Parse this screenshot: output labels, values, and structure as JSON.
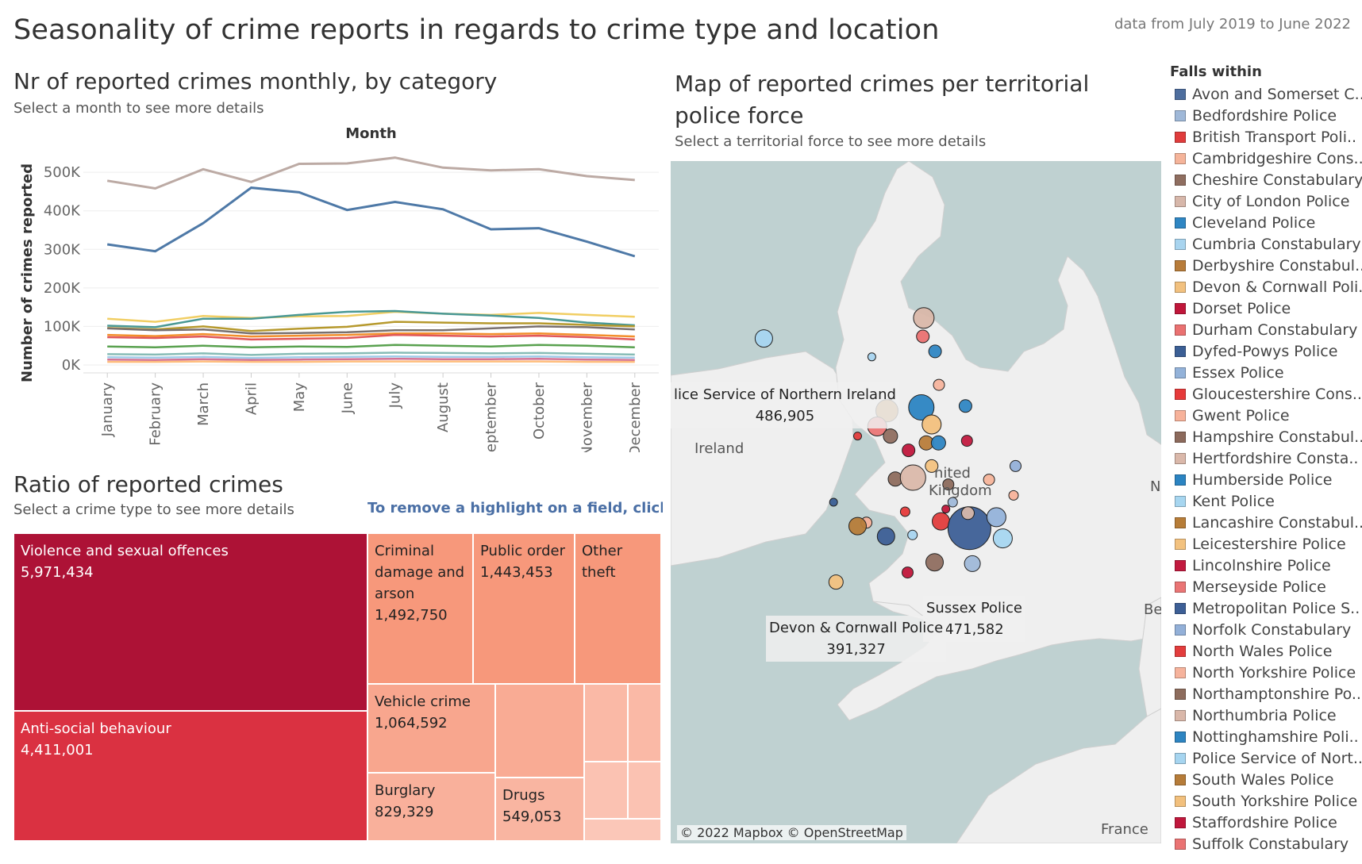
{
  "header": {
    "title": "Seasonality of crime reports in regards to crime type and location",
    "date_range": "data from July 2019 to June 2022"
  },
  "line_section": {
    "title": "Nr of reported crimes monthly, by category",
    "subtitle": "Select a month to see more details"
  },
  "map_section": {
    "title": "Map of reported crimes per territorial police force",
    "subtitle": "Select a territorial force to see more details",
    "credit": "© 2022 Mapbox © OpenStreetMap",
    "geo_labels": [
      "Ireland",
      "nited",
      "Kingdom",
      "France",
      "N",
      "Be"
    ],
    "callouts": [
      {
        "name": "lice Service of Northern Ireland",
        "value": "486,905"
      },
      {
        "name": "Sussex Police",
        "value": "471,582"
      },
      {
        "name": "Devon & Cornwall Police",
        "value": "391,327"
      }
    ]
  },
  "treemap_section": {
    "title": "Ratio of reported crimes",
    "subtitle": "Select a crime type to see more details",
    "hint": "To remove a highlight on a field, click esc"
  },
  "chart_data": [
    {
      "type": "line",
      "title": "Month",
      "xlabel": "",
      "ylabel": "Number of crimes reported",
      "categories": [
        "January",
        "February",
        "March",
        "April",
        "May",
        "June",
        "July",
        "August",
        "September",
        "October",
        "November",
        "December"
      ],
      "y_ticks": [
        "0K",
        "100K",
        "200K",
        "300K",
        "400K",
        "500K"
      ],
      "ylim": [
        0,
        560000
      ],
      "grid": true,
      "series": [
        {
          "color": "#bcaaa4",
          "values": [
            478000,
            458000,
            508000,
            475000,
            522000,
            523000,
            538000,
            512000,
            505000,
            508000,
            490000,
            480000
          ]
        },
        {
          "color": "#4e79a7",
          "values": [
            313000,
            295000,
            368000,
            460000,
            448000,
            402000,
            423000,
            404000,
            352000,
            355000,
            320000,
            282000
          ]
        },
        {
          "color": "#f1ce63",
          "values": [
            120000,
            112000,
            127000,
            122000,
            126000,
            127000,
            138000,
            133000,
            130000,
            135000,
            130000,
            125000
          ]
        },
        {
          "color": "#499894",
          "values": [
            102000,
            98000,
            120000,
            120000,
            130000,
            138000,
            140000,
            133000,
            128000,
            122000,
            110000,
            103000
          ]
        },
        {
          "color": "#b6992d",
          "values": [
            96000,
            92000,
            100000,
            88000,
            94000,
            99000,
            112000,
            110000,
            108000,
            108000,
            104000,
            100000
          ]
        },
        {
          "color": "#79706e",
          "values": [
            95000,
            90000,
            92000,
            82000,
            83000,
            85000,
            90000,
            90000,
            95000,
            100000,
            98000,
            92000
          ]
        },
        {
          "color": "#f28e2b",
          "values": [
            78000,
            75000,
            80000,
            74000,
            76000,
            78000,
            82000,
            82000,
            80000,
            82000,
            78000,
            74000
          ]
        },
        {
          "color": "#e15759",
          "values": [
            72000,
            70000,
            74000,
            66000,
            68000,
            70000,
            78000,
            76000,
            74000,
            76000,
            72000,
            66000
          ]
        },
        {
          "color": "#59a14f",
          "values": [
            48000,
            46000,
            50000,
            46000,
            48000,
            47000,
            52000,
            50000,
            48000,
            52000,
            50000,
            46000
          ]
        },
        {
          "color": "#86bcb6",
          "values": [
            28000,
            27000,
            30000,
            26000,
            29000,
            30000,
            32000,
            31000,
            30000,
            31000,
            29000,
            27000
          ]
        },
        {
          "color": "#a0cbe8",
          "values": [
            20000,
            19000,
            21000,
            18000,
            20000,
            21000,
            22000,
            21000,
            21000,
            22000,
            20000,
            19000
          ]
        },
        {
          "color": "#d37295",
          "values": [
            14000,
            13000,
            15000,
            13000,
            14000,
            15000,
            16000,
            15000,
            15000,
            16000,
            14000,
            13000
          ]
        },
        {
          "color": "#ffbe7d",
          "values": [
            8000,
            8000,
            9000,
            8000,
            8000,
            9000,
            9000,
            9000,
            9000,
            9000,
            8000,
            8000
          ]
        }
      ]
    },
    {
      "type": "treemap",
      "cells": [
        {
          "name": "Violence and sexual offences",
          "value": "5,971,434",
          "color": "#ad1236"
        },
        {
          "name": "Anti-social behaviour",
          "value": "4,411,001",
          "color": "#da3141"
        },
        {
          "name": "Criminal damage and arson",
          "value": "1,492,750",
          "color": "#f7987b"
        },
        {
          "name": "Public order",
          "value": "1,443,453",
          "color": "#f7987b"
        },
        {
          "name": "Other theft",
          "value": "",
          "color": "#f7987b"
        },
        {
          "name": "Vehicle crime",
          "value": "1,064,592",
          "color": "#f8a68e"
        },
        {
          "name": "",
          "value": "",
          "color": "#f9ab94"
        },
        {
          "name": "",
          "value": "",
          "color": "#fab9a6"
        },
        {
          "name": "",
          "value": "",
          "color": "#fab9a6"
        },
        {
          "name": "Burglary",
          "value": "829,329",
          "color": "#f9b09b"
        },
        {
          "name": "Drugs",
          "value": "549,053",
          "color": "#f9b5a1"
        },
        {
          "name": "",
          "value": "",
          "color": "#fbc2b2"
        },
        {
          "name": "",
          "value": "",
          "color": "#fbc2b2"
        },
        {
          "name": "",
          "value": "",
          "color": "#fbc7b8"
        }
      ]
    },
    {
      "type": "scatter",
      "title": "Map of reported crimes per territorial police force",
      "legend_title": "Falls within",
      "legend_placement": "right",
      "legend": [
        {
          "name": "Avon and Somerset C..",
          "color": "#4e6e9e"
        },
        {
          "name": "Bedfordshire Police",
          "color": "#9fb8d8"
        },
        {
          "name": "British Transport Poli..",
          "color": "#e03c3c"
        },
        {
          "name": "Cambridgeshire Cons..",
          "color": "#f5b49a"
        },
        {
          "name": "Cheshire Constabulary",
          "color": "#8f6e60"
        },
        {
          "name": "City of London Police",
          "color": "#d7b7aa"
        },
        {
          "name": "Cleveland Police",
          "color": "#2f86c3"
        },
        {
          "name": "Cumbria Constabulary",
          "color": "#a8d4ef"
        },
        {
          "name": "Derbyshire Constabul..",
          "color": "#b87c3a"
        },
        {
          "name": "Devon & Cornwall Poli..",
          "color": "#f2c17f"
        },
        {
          "name": "Dorset Police",
          "color": "#c0163a"
        },
        {
          "name": "Durham Constabulary",
          "color": "#ea7171"
        },
        {
          "name": "Dyfed-Powys Police",
          "color": "#3b5f95"
        },
        {
          "name": "Essex Police",
          "color": "#93b2d9"
        },
        {
          "name": "Gloucestershire Cons..",
          "color": "#e63a3a"
        },
        {
          "name": "Gwent Police",
          "color": "#f7b29a"
        },
        {
          "name": "Hampshire Constabul..",
          "color": "#8c6a5c"
        },
        {
          "name": "Hertfordshire Consta..",
          "color": "#dab8aa"
        },
        {
          "name": "Humberside Police",
          "color": "#2b84c2"
        },
        {
          "name": "Kent Police",
          "color": "#a7d6f0"
        },
        {
          "name": "Lancashire Constabul..",
          "color": "#b77d38"
        },
        {
          "name": "Leicestershire Police",
          "color": "#f3c27f"
        },
        {
          "name": "Lincolnshire Police",
          "color": "#c21a3f"
        },
        {
          "name": "Merseyside Police",
          "color": "#ea7575"
        },
        {
          "name": "Metropolitan Police S..",
          "color": "#3d5f96"
        },
        {
          "name": "Norfolk Constabulary",
          "color": "#93b0d8"
        },
        {
          "name": "North Wales Police",
          "color": "#e33d3d"
        },
        {
          "name": "North Yorkshire Police",
          "color": "#f6b39c"
        },
        {
          "name": "Northamptonshire Po..",
          "color": "#8d6c5d"
        },
        {
          "name": "Northumbria Police",
          "color": "#d9b7a9"
        },
        {
          "name": "Nottinghamshire Poli..",
          "color": "#2e85c2"
        },
        {
          "name": "Police Service of Nort..",
          "color": "#a6d5f0"
        },
        {
          "name": "South Wales Police",
          "color": "#b67c39"
        },
        {
          "name": "South Yorkshire Police",
          "color": "#f2c07d"
        },
        {
          "name": "Staffordshire Police",
          "color": "#c0173c"
        },
        {
          "name": "Suffolk Constabulary",
          "color": "#ea7373"
        }
      ],
      "points": [
        {
          "x": 0.19,
          "y": 0.26,
          "r": 11,
          "color": "#a6d5f0"
        },
        {
          "x": 0.41,
          "y": 0.287,
          "r": 5,
          "color": "#a8d4ef"
        },
        {
          "x": 0.516,
          "y": 0.23,
          "r": 13,
          "color": "#d9b7a9"
        },
        {
          "x": 0.514,
          "y": 0.257,
          "r": 8,
          "color": "#ea7171"
        },
        {
          "x": 0.539,
          "y": 0.279,
          "r": 8,
          "color": "#2f86c3"
        },
        {
          "x": 0.547,
          "y": 0.328,
          "r": 7,
          "color": "#f6b39c"
        },
        {
          "x": 0.441,
          "y": 0.366,
          "r": 14,
          "color": "#b77d38"
        },
        {
          "x": 0.511,
          "y": 0.361,
          "r": 16,
          "color": "#2b84c2"
        },
        {
          "x": 0.532,
          "y": 0.386,
          "r": 12,
          "color": "#f2c07d"
        },
        {
          "x": 0.601,
          "y": 0.359,
          "r": 8,
          "color": "#2f86c3"
        },
        {
          "x": 0.421,
          "y": 0.389,
          "r": 12,
          "color": "#ea7575"
        },
        {
          "x": 0.448,
          "y": 0.403,
          "r": 9,
          "color": "#8f6e60"
        },
        {
          "x": 0.381,
          "y": 0.403,
          "r": 5,
          "color": "#e33d3d"
        },
        {
          "x": 0.521,
          "y": 0.413,
          "r": 9,
          "color": "#b87c3a"
        },
        {
          "x": 0.546,
          "y": 0.413,
          "r": 9,
          "color": "#2e85c2"
        },
        {
          "x": 0.604,
          "y": 0.41,
          "r": 7,
          "color": "#c21a3f"
        },
        {
          "x": 0.485,
          "y": 0.424,
          "r": 8,
          "color": "#c0173c"
        },
        {
          "x": 0.532,
          "y": 0.447,
          "r": 8,
          "color": "#f3c27f"
        },
        {
          "x": 0.458,
          "y": 0.466,
          "r": 9,
          "color": "#8d6c5d"
        },
        {
          "x": 0.494,
          "y": 0.464,
          "r": 16,
          "color": "#dab8aa"
        },
        {
          "x": 0.566,
          "y": 0.474,
          "r": 7,
          "color": "#8c6a5c"
        },
        {
          "x": 0.649,
          "y": 0.467,
          "r": 7,
          "color": "#f5b49a"
        },
        {
          "x": 0.703,
          "y": 0.447,
          "r": 7,
          "color": "#93b0d8"
        },
        {
          "x": 0.699,
          "y": 0.49,
          "r": 6,
          "color": "#f7b29a"
        },
        {
          "x": 0.575,
          "y": 0.5,
          "r": 6,
          "color": "#9fb8d8"
        },
        {
          "x": 0.561,
          "y": 0.51,
          "r": 5,
          "color": "#c0163a"
        },
        {
          "x": 0.332,
          "y": 0.5,
          "r": 5,
          "color": "#3b5f95"
        },
        {
          "x": 0.478,
          "y": 0.514,
          "r": 6,
          "color": "#e63a3a"
        },
        {
          "x": 0.551,
          "y": 0.528,
          "r": 11,
          "color": "#e03c3c"
        },
        {
          "x": 0.609,
          "y": 0.538,
          "r": 27,
          "color": "#3d5f96"
        },
        {
          "x": 0.606,
          "y": 0.516,
          "r": 8,
          "color": "#d7b7aa"
        },
        {
          "x": 0.664,
          "y": 0.522,
          "r": 12,
          "color": "#93b2d9"
        },
        {
          "x": 0.677,
          "y": 0.553,
          "r": 12,
          "color": "#a7d6f0"
        },
        {
          "x": 0.399,
          "y": 0.53,
          "r": 7,
          "color": "#f7b29a"
        },
        {
          "x": 0.381,
          "y": 0.535,
          "r": 11,
          "color": "#b67c39"
        },
        {
          "x": 0.439,
          "y": 0.55,
          "r": 11,
          "color": "#3d5f96"
        },
        {
          "x": 0.493,
          "y": 0.548,
          "r": 6,
          "color": "#a8d4ef"
        },
        {
          "x": 0.538,
          "y": 0.588,
          "r": 11,
          "color": "#8f6e60"
        },
        {
          "x": 0.615,
          "y": 0.59,
          "r": 10,
          "color": "#9fb8d8"
        },
        {
          "x": 0.483,
          "y": 0.603,
          "r": 7,
          "color": "#c0163a"
        },
        {
          "x": 0.337,
          "y": 0.617,
          "r": 9,
          "color": "#f2c17f"
        }
      ]
    }
  ]
}
